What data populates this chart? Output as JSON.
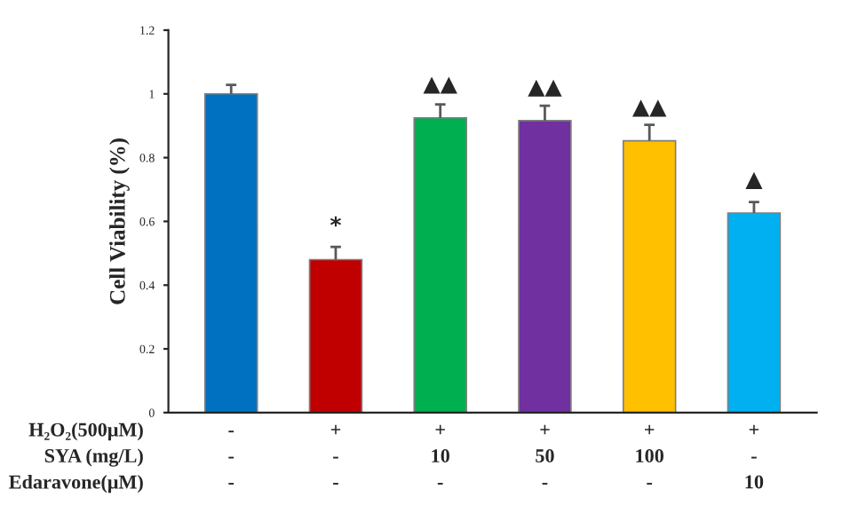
{
  "chart_data": {
    "type": "bar",
    "ylabel": "Cell Viability (%)",
    "categories": [
      "-\n-\n-",
      "+\n-\n-",
      "+\n10\n-",
      "+\n50\n-",
      "+\n100\n-",
      "+\n-\n10"
    ],
    "values": [
      1.0,
      0.48,
      0.925,
      0.916,
      0.853,
      0.626
    ],
    "colors": [
      "#0070c0",
      "#c00000",
      "#00b050",
      "#7030a0",
      "#ffc000",
      "#00b0f0"
    ],
    "errors": [
      [
        1.0,
        1.028
      ],
      [
        0.48,
        0.52
      ],
      [
        0.925,
        0.967
      ],
      [
        0.916,
        0.963
      ],
      [
        0.853,
        0.903
      ],
      [
        0.626,
        0.661
      ]
    ],
    "ylim": [
      0,
      1.2
    ],
    "yticks": [
      0,
      0.2,
      0.4,
      0.6,
      0.8,
      1,
      1.2
    ],
    "grid": false,
    "value_labels": [
      null,
      "*",
      "▲▲",
      "▲▲",
      "▲▲",
      "▲"
    ],
    "annotations": [
      "H₂O₂(500μM)",
      "SYA (mg/L)",
      "Edaravone(μM)"
    ]
  }
}
